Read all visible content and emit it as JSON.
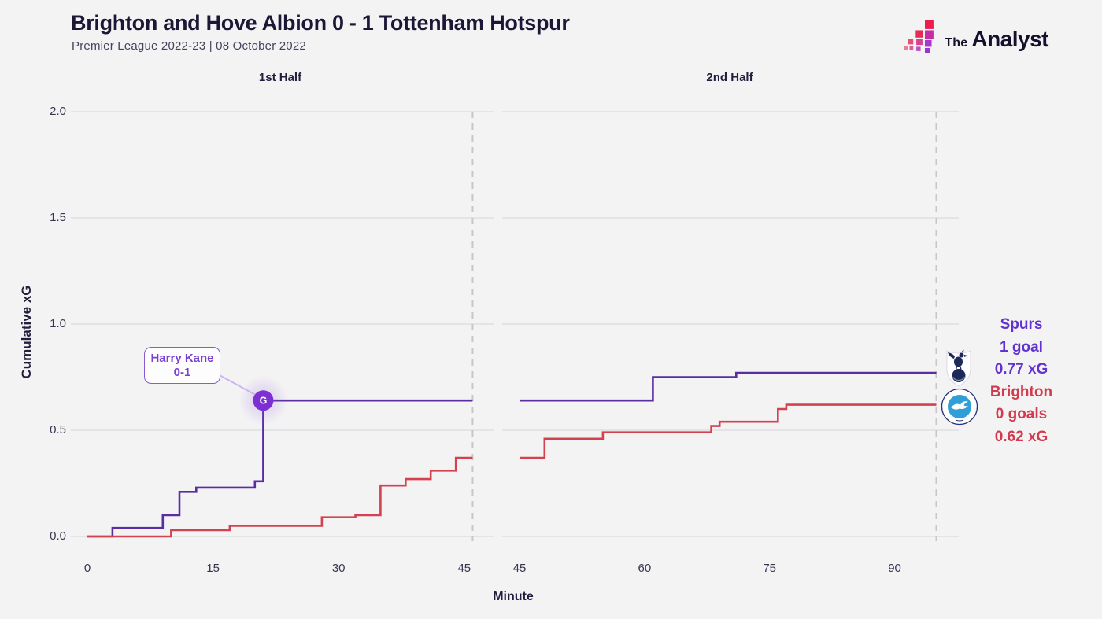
{
  "header": {
    "title": "Brighton and Hove Albion 0 - 1 Tottenham Hotspur",
    "subtitle": "Premier League 2022-23 | 08 October 2022"
  },
  "brand": {
    "prefix": "The",
    "name": "Analyst"
  },
  "panels": [
    {
      "label": "1st Half"
    },
    {
      "label": "2nd Half"
    }
  ],
  "axes": {
    "y_label": "Cumulative xG",
    "x_label": "Minute",
    "y_ticks": [
      "0.0",
      "0.5",
      "1.0",
      "1.5",
      "2.0"
    ],
    "panel_x_ticks": [
      [
        0,
        15,
        30,
        45
      ],
      [
        45,
        60,
        75,
        90
      ]
    ]
  },
  "annotation": {
    "player": "Harry Kane",
    "score": "0-1",
    "marker_label": "G"
  },
  "summary": {
    "spurs": {
      "team": "Spurs",
      "goals": "1 goal",
      "xg": "0.77 xG"
    },
    "brighton": {
      "team": "Brighton",
      "goals": "0 goals",
      "xg": "0.62 xG"
    }
  },
  "colors": {
    "tottenham_line": "#5b2da2",
    "brighton_line": "#d4414f",
    "grid": "#e4e3e5",
    "dashed": "#c7c6c9",
    "goal_marker": "#7d2fd4",
    "connector": "#c9b6ec",
    "spurs_text": "#6132d1",
    "brighton_text": "#d23a4d"
  },
  "chart_data": {
    "type": "line",
    "title": "Brighton and Hove Albion 0 - 1 Tottenham Hotspur",
    "xlabel": "Minute",
    "ylabel": "Cumulative xG",
    "ylim": [
      0,
      2
    ],
    "y_ticks": [
      0,
      0.5,
      1,
      1.5,
      2
    ],
    "legend_position": "right",
    "grid": "horizontal",
    "panels": [
      {
        "label": "1st Half",
        "x_ticks": [
          0,
          15,
          30,
          45
        ],
        "end_minute": 46,
        "series": [
          {
            "name": "Tottenham Hotspur",
            "color": "#5b2da2",
            "step_points": [
              [
                0,
                0
              ],
              [
                3,
                0.04
              ],
              [
                9,
                0.1
              ],
              [
                11,
                0.21
              ],
              [
                13,
                0.23
              ],
              [
                20,
                0.26
              ],
              [
                21,
                0.64
              ],
              [
                46,
                0.64
              ]
            ]
          },
          {
            "name": "Brighton & Hove Albion",
            "color": "#d4414f",
            "step_points": [
              [
                0,
                0
              ],
              [
                10,
                0.03
              ],
              [
                17,
                0.05
              ],
              [
                28,
                0.09
              ],
              [
                32,
                0.1
              ],
              [
                35,
                0.24
              ],
              [
                38,
                0.27
              ],
              [
                41,
                0.31
              ],
              [
                44,
                0.37
              ],
              [
                46,
                0.37
              ]
            ]
          }
        ],
        "events": [
          {
            "minute": 21,
            "value": 0.64,
            "marker": "G",
            "player": "Harry Kane",
            "score": "0-1",
            "team": "Tottenham Hotspur"
          }
        ]
      },
      {
        "label": "2nd Half",
        "x_ticks": [
          45,
          60,
          75,
          90
        ],
        "end_minute": 95,
        "series": [
          {
            "name": "Tottenham Hotspur",
            "color": "#5b2da2",
            "step_points": [
              [
                45,
                0.64
              ],
              [
                61,
                0.75
              ],
              [
                71,
                0.77
              ],
              [
                95,
                0.77
              ]
            ]
          },
          {
            "name": "Brighton & Hove Albion",
            "color": "#d4414f",
            "step_points": [
              [
                45,
                0.37
              ],
              [
                48,
                0.46
              ],
              [
                55,
                0.49
              ],
              [
                68,
                0.52
              ],
              [
                69,
                0.54
              ],
              [
                76,
                0.6
              ],
              [
                77,
                0.62
              ],
              [
                95,
                0.62
              ]
            ]
          }
        ],
        "events": []
      }
    ],
    "totals": [
      {
        "team": "Tottenham Hotspur",
        "label": "Spurs",
        "goals": 1,
        "xg": 0.77
      },
      {
        "team": "Brighton & Hove Albion",
        "label": "Brighton",
        "goals": 0,
        "xg": 0.62
      }
    ]
  }
}
